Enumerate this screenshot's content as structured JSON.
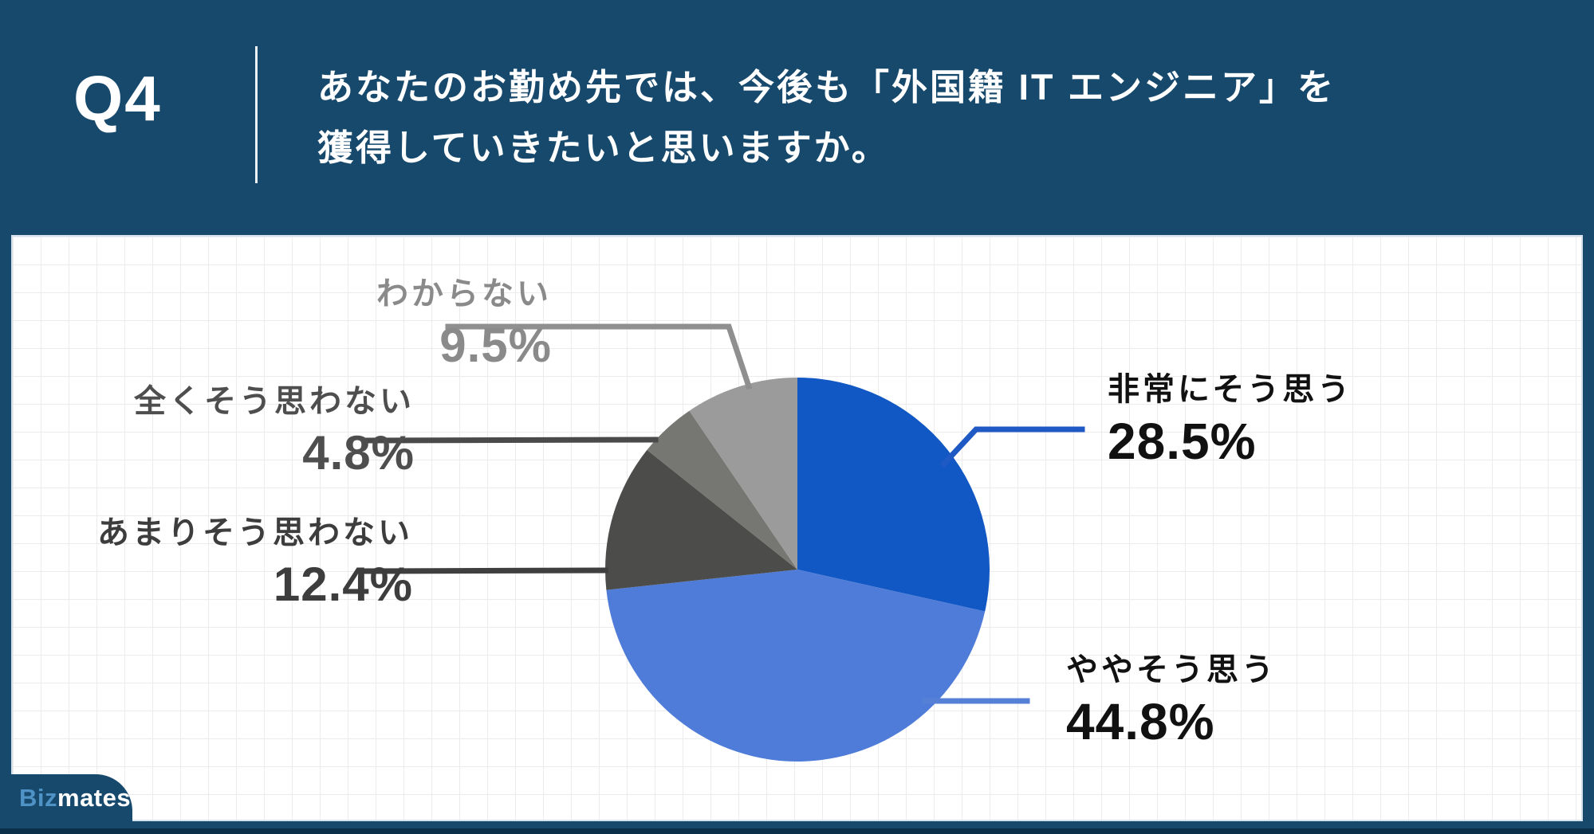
{
  "header": {
    "question_number": "Q4",
    "question_line1": "あなたのお勤め先では、今後も「外国籍 IT エンジニア」を",
    "question_line2": "獲得していきたいと思いますか。"
  },
  "branding": {
    "logo_biz": "Biz",
    "logo_mates": "mates"
  },
  "colors": {
    "background_navy": "#17496d",
    "panel_white": "#ffffff",
    "grid_line": "#ececef"
  },
  "chart_data": {
    "type": "pie",
    "title": "あなたのお勤め先では、今後も「外国籍 IT エンジニア」を獲得していきたいと思いますか。",
    "start_angle_deg": 0,
    "clockwise": true,
    "legend_position": "callout-labels",
    "grid": true,
    "series": [
      {
        "label": "非常にそう思う",
        "value": 28.5,
        "display": "28.5%",
        "color": "#1158c4",
        "label_color": "#111111",
        "leader_color": "#1f5ac4"
      },
      {
        "label": "ややそう思う",
        "value": 44.8,
        "display": "44.8%",
        "color": "#4e7cd8",
        "label_color": "#111111",
        "leader_color": "#5580d6"
      },
      {
        "label": "あまりそう思わない",
        "value": 12.4,
        "display": "12.4%",
        "color": "#4c4c4a",
        "label_color": "#3d3d3d",
        "leader_color": "#3f3f3f"
      },
      {
        "label": "全くそう思わない",
        "value": 4.8,
        "display": "4.8%",
        "color": "#767672",
        "label_color": "#4e4e4e",
        "leader_color": "#4a4a4a"
      },
      {
        "label": "わからない",
        "value": 9.5,
        "display": "9.5%",
        "color": "#9b9b9b",
        "label_color": "#8a8a8a",
        "leader_color": "#8f8f8f"
      }
    ]
  }
}
